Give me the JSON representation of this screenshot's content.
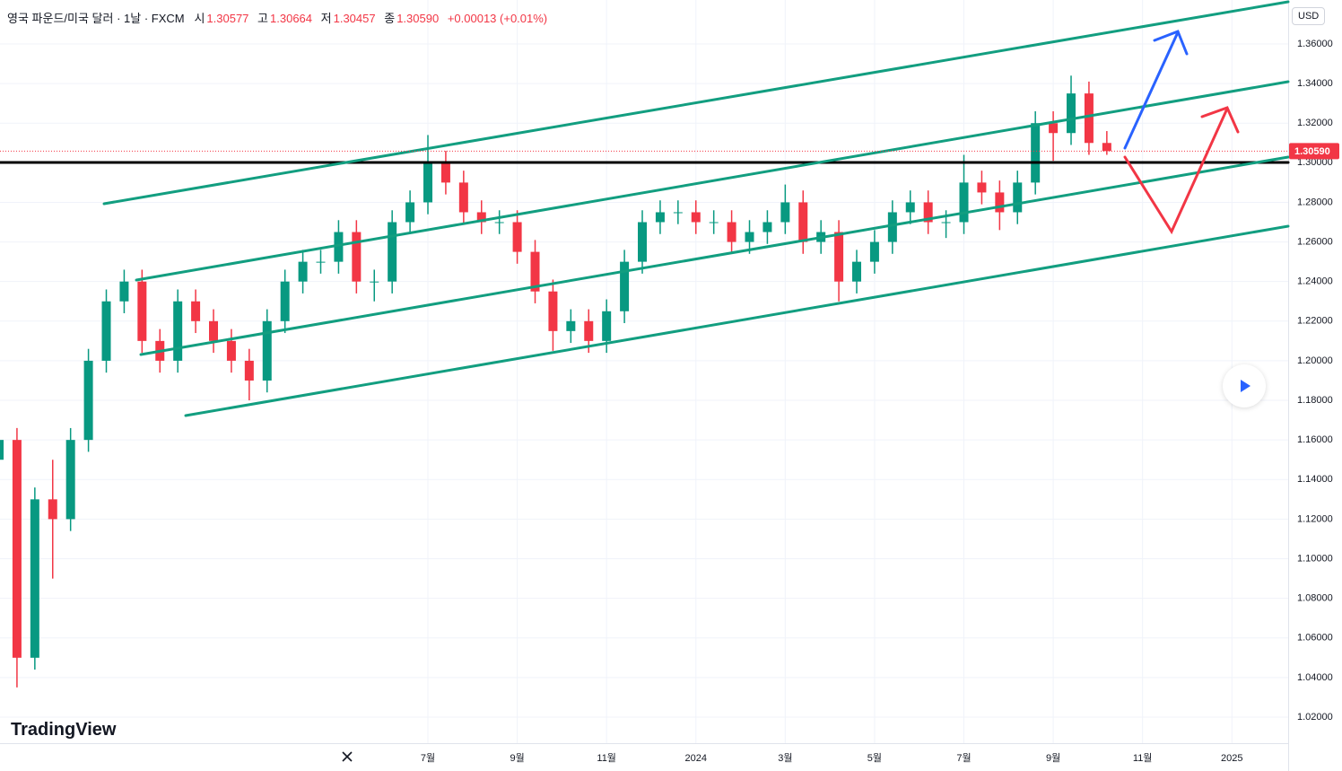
{
  "chart_data": {
    "type": "candlestick",
    "title": "영국 파운드/미국 달러 · 1날 · FXCM",
    "header": {
      "open_label": "시",
      "open": "1.30577",
      "high_label": "고",
      "high": "1.30664",
      "low_label": "저",
      "low": "1.30457",
      "close_label": "종",
      "close": "1.30590",
      "change": "+0.00013 (+0.01%)"
    },
    "currency": "USD",
    "watermark": "TradingView",
    "up_color": "#089981",
    "down_color": "#f23645",
    "grid": true,
    "last_price": {
      "value": 1.3059,
      "label": "1.30590"
    },
    "xlim": [
      0.42,
      29.26
    ],
    "xticks": [
      {
        "value": 10,
        "label": "7월"
      },
      {
        "value": 12,
        "label": "9월"
      },
      {
        "value": 14,
        "label": "11월"
      },
      {
        "value": 16,
        "label": "2024"
      },
      {
        "value": 18,
        "label": "3월"
      },
      {
        "value": 20,
        "label": "5월"
      },
      {
        "value": 22,
        "label": "7월"
      },
      {
        "value": 24,
        "label": "9월"
      },
      {
        "value": 26,
        "label": "11월"
      },
      {
        "value": 28,
        "label": "2025"
      }
    ],
    "ylim": [
      1.00685,
      1.3822
    ],
    "yticks": [
      {
        "value": 1.02,
        "label": "1.02000"
      },
      {
        "value": 1.04,
        "label": "1.04000"
      },
      {
        "value": 1.06,
        "label": "1.06000"
      },
      {
        "value": 1.08,
        "label": "1.08000"
      },
      {
        "value": 1.1,
        "label": "1.10000"
      },
      {
        "value": 1.12,
        "label": "1.12000"
      },
      {
        "value": 1.14,
        "label": "1.14000"
      },
      {
        "value": 1.16,
        "label": "1.16000"
      },
      {
        "value": 1.18,
        "label": "1.18000"
      },
      {
        "value": 1.2,
        "label": "1.20000"
      },
      {
        "value": 1.22,
        "label": "1.22000"
      },
      {
        "value": 1.24,
        "label": "1.24000"
      },
      {
        "value": 1.26,
        "label": "1.26000"
      },
      {
        "value": 1.28,
        "label": "1.28000"
      },
      {
        "value": 1.3,
        "label": "1.30000"
      },
      {
        "value": 1.32,
        "label": "1.32000"
      },
      {
        "value": 1.34,
        "label": "1.34000"
      },
      {
        "value": 1.36,
        "label": "1.36000"
      }
    ],
    "x": [
      0.4,
      0.8,
      1.2,
      1.6,
      2.0,
      2.4,
      2.8,
      3.2,
      3.6,
      4.0,
      4.4,
      4.8,
      5.2,
      5.6,
      6.0,
      6.4,
      6.8,
      7.2,
      7.6,
      8.0,
      8.4,
      8.8,
      9.2,
      9.6,
      10.0,
      10.4,
      10.8,
      11.2,
      11.6,
      12.0,
      12.4,
      12.8,
      13.2,
      13.6,
      14.0,
      14.4,
      14.8,
      15.2,
      15.6,
      16.0,
      16.4,
      16.8,
      17.2,
      17.6,
      18.0,
      18.4,
      18.8,
      19.2,
      19.6,
      20.0,
      20.4,
      20.8,
      21.2,
      21.6,
      22.0,
      22.4,
      22.8,
      23.2,
      23.6,
      24.0,
      24.4,
      24.8,
      25.2
    ],
    "open": [
      1.15,
      1.16,
      1.05,
      1.13,
      1.12,
      1.16,
      1.2,
      1.23,
      1.24,
      1.21,
      1.2,
      1.23,
      1.22,
      1.21,
      1.2,
      1.19,
      1.22,
      1.24,
      1.25,
      1.25,
      1.265,
      1.24,
      1.24,
      1.27,
      1.28,
      1.3,
      1.29,
      1.275,
      1.27,
      1.27,
      1.255,
      1.235,
      1.215,
      1.22,
      1.21,
      1.225,
      1.25,
      1.27,
      1.275,
      1.275,
      1.27,
      1.27,
      1.26,
      1.265,
      1.27,
      1.28,
      1.26,
      1.265,
      1.24,
      1.25,
      1.26,
      1.275,
      1.28,
      1.27,
      1.27,
      1.29,
      1.285,
      1.275,
      1.29,
      1.32,
      1.315,
      1.335,
      1.31
    ],
    "high": [
      1.166,
      1.166,
      1.136,
      1.15,
      1.166,
      1.206,
      1.236,
      1.246,
      1.246,
      1.216,
      1.236,
      1.236,
      1.226,
      1.216,
      1.206,
      1.226,
      1.246,
      1.256,
      1.256,
      1.271,
      1.271,
      1.246,
      1.276,
      1.286,
      1.314,
      1.306,
      1.296,
      1.281,
      1.276,
      1.276,
      1.261,
      1.241,
      1.226,
      1.226,
      1.231,
      1.256,
      1.276,
      1.281,
      1.281,
      1.281,
      1.276,
      1.276,
      1.271,
      1.276,
      1.289,
      1.286,
      1.271,
      1.271,
      1.256,
      1.266,
      1.281,
      1.286,
      1.286,
      1.276,
      1.304,
      1.296,
      1.291,
      1.296,
      1.326,
      1.326,
      1.344,
      1.341,
      1.316
    ],
    "low": [
      1.144,
      1.035,
      1.044,
      1.09,
      1.114,
      1.154,
      1.194,
      1.224,
      1.204,
      1.194,
      1.194,
      1.214,
      1.204,
      1.194,
      1.18,
      1.184,
      1.214,
      1.234,
      1.244,
      1.244,
      1.234,
      1.23,
      1.234,
      1.264,
      1.274,
      1.284,
      1.269,
      1.264,
      1.264,
      1.249,
      1.229,
      1.205,
      1.209,
      1.204,
      1.204,
      1.219,
      1.244,
      1.264,
      1.269,
      1.264,
      1.264,
      1.254,
      1.254,
      1.259,
      1.264,
      1.254,
      1.254,
      1.23,
      1.234,
      1.244,
      1.254,
      1.269,
      1.264,
      1.262,
      1.264,
      1.279,
      1.266,
      1.269,
      1.284,
      1.301,
      1.309,
      1.304,
      1.304
    ],
    "close": [
      1.16,
      1.05,
      1.13,
      1.12,
      1.16,
      1.2,
      1.23,
      1.24,
      1.21,
      1.2,
      1.23,
      1.22,
      1.21,
      1.2,
      1.19,
      1.22,
      1.24,
      1.25,
      1.25,
      1.265,
      1.24,
      1.24,
      1.27,
      1.28,
      1.3,
      1.29,
      1.275,
      1.27,
      1.27,
      1.255,
      1.235,
      1.215,
      1.22,
      1.21,
      1.225,
      1.25,
      1.27,
      1.275,
      1.275,
      1.27,
      1.27,
      1.26,
      1.265,
      1.27,
      1.28,
      1.26,
      1.265,
      1.24,
      1.25,
      1.26,
      1.275,
      1.28,
      1.27,
      1.27,
      1.29,
      1.285,
      1.275,
      1.29,
      1.32,
      1.315,
      1.335,
      1.31,
      1.3059
    ]
  }
}
